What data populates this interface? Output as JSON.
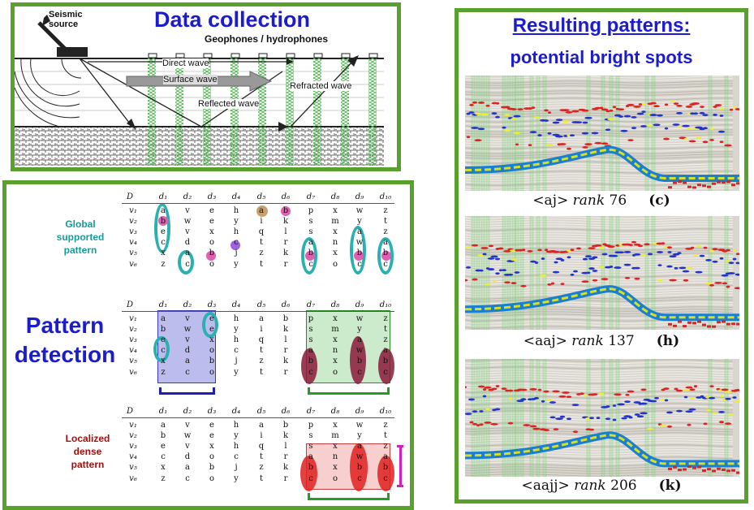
{
  "colors": {
    "panel_border": "#5aa02c",
    "title_blue": "#1c1ccf",
    "global_teal": "#1a9a9a",
    "local_red": "#a01010",
    "cyan": "#2ab0b0",
    "pink": "#e060b0",
    "tan": "#c8a070",
    "purple": "#a060e0",
    "blue_box": "#6b6bd8",
    "green_box": "#6cc46c",
    "red_box": "#f0a0a0",
    "maroon": "#8a1a3a",
    "red_ellipse": "#e02020",
    "magenta": "#d020c0"
  },
  "data_panel": {
    "title": "Data collection",
    "seismic_source": "Seismic\nsource",
    "geophones": "Geophones / hydrophones",
    "direct": "Direct wave",
    "surface": "Surface wave",
    "reflected": "Reflected wave",
    "refracted": "Refracted wave"
  },
  "pattern_panel": {
    "title": "Pattern\ndetection",
    "global_label": "Global\nsupported\npattern",
    "local_label": "Localized\ndense\npattern",
    "matrix": {
      "corner": "D",
      "columns": [
        "d1",
        "d2",
        "d3",
        "d4",
        "d5",
        "d6",
        "d7",
        "d8",
        "d9",
        "d10"
      ],
      "rows": [
        "v1",
        "v2",
        "v3",
        "v4",
        "v5",
        "v6"
      ],
      "cells": [
        [
          "a",
          "v",
          "e",
          "h",
          "a",
          "b",
          "p",
          "x",
          "w",
          "z"
        ],
        [
          "b",
          "w",
          "e",
          "y",
          "i",
          "k",
          "s",
          "m",
          "y",
          "t"
        ],
        [
          "e",
          "v",
          "x",
          "h",
          "q",
          "l",
          "s",
          "x",
          "a",
          "z"
        ],
        [
          "c",
          "d",
          "o",
          "c",
          "t",
          "r",
          "a",
          "n",
          "w",
          "a"
        ],
        [
          "x",
          "a",
          "b",
          "j",
          "z",
          "k",
          "b",
          "x",
          "b",
          "b"
        ],
        [
          "z",
          "c",
          "o",
          "y",
          "t",
          "r",
          "c",
          "o",
          "c",
          "c"
        ]
      ]
    }
  },
  "result_panel": {
    "title": "Resulting patterns:",
    "subtitle": "potential bright spots",
    "captions": [
      {
        "pattern": "<aj>",
        "rank_word": "rank",
        "rank": "76",
        "tag": "(c)"
      },
      {
        "pattern": "<aaj>",
        "rank_word": "rank",
        "rank": "137",
        "tag": "(h)"
      },
      {
        "pattern": "<aajj>",
        "rank_word": "rank",
        "rank": "206",
        "tag": "(k)"
      }
    ]
  }
}
